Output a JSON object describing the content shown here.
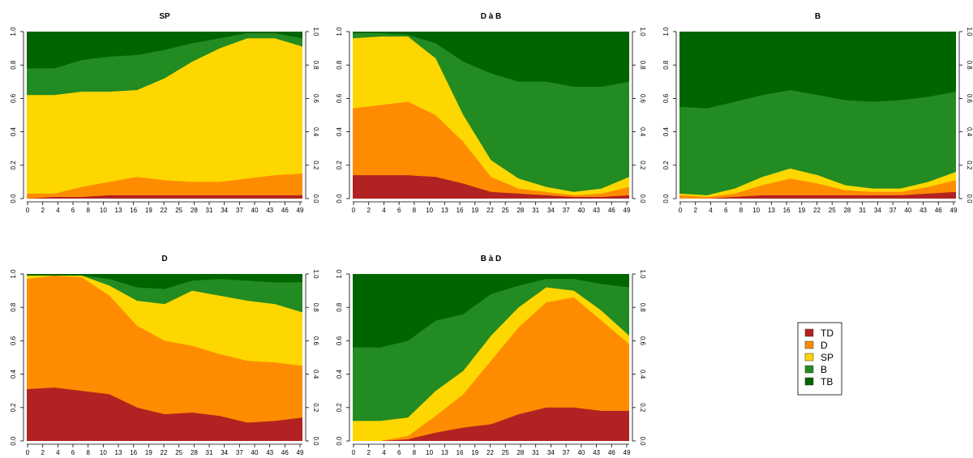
{
  "chart_data": {
    "type": "area",
    "stacked": true,
    "legend": {
      "placement": "right",
      "entries": [
        {
          "label": "TD",
          "color": "#B22222"
        },
        {
          "label": "D",
          "color": "#FF8C00"
        },
        {
          "label": "SP",
          "color": "#FFD700"
        },
        {
          "label": "B",
          "color": "#228B22"
        },
        {
          "label": "TB",
          "color": "#006400"
        }
      ]
    },
    "x": [
      0,
      5,
      10,
      15,
      20,
      25,
      30,
      35,
      40,
      45,
      50
    ],
    "x_tick_labels": [
      "0",
      "2",
      "4",
      "6",
      "8",
      "10",
      "13",
      "16",
      "19",
      "22",
      "25",
      "28",
      "31",
      "34",
      "37",
      "40",
      "43",
      "46",
      "49"
    ],
    "ylim": [
      0,
      1
    ],
    "y_tick_labels": [
      "0.0",
      "0.2",
      "0.4",
      "0.6",
      "0.8",
      "1.0"
    ],
    "panels": [
      {
        "title": "SP",
        "cumulative": {
          "TD": [
            0.0,
            0.01,
            0.01,
            0.02,
            0.02,
            0.02,
            0.02,
            0.02,
            0.02,
            0.02,
            0.02
          ],
          "D": [
            0.03,
            0.03,
            0.07,
            0.1,
            0.13,
            0.11,
            0.1,
            0.1,
            0.12,
            0.14,
            0.15
          ],
          "SP": [
            0.62,
            0.62,
            0.64,
            0.64,
            0.65,
            0.72,
            0.82,
            0.9,
            0.96,
            0.96,
            0.91
          ],
          "B": [
            0.78,
            0.78,
            0.83,
            0.85,
            0.86,
            0.89,
            0.93,
            0.96,
            0.99,
            0.99,
            0.96
          ]
        }
      },
      {
        "title": "D à B",
        "cumulative": {
          "TD": [
            0.14,
            0.14,
            0.14,
            0.13,
            0.09,
            0.04,
            0.03,
            0.02,
            0.01,
            0.01,
            0.02
          ],
          "D": [
            0.54,
            0.56,
            0.58,
            0.5,
            0.34,
            0.13,
            0.06,
            0.04,
            0.02,
            0.03,
            0.07
          ],
          "SP": [
            0.96,
            0.97,
            0.97,
            0.84,
            0.5,
            0.23,
            0.12,
            0.07,
            0.04,
            0.06,
            0.13
          ],
          "B": [
            0.99,
            0.99,
            0.98,
            0.93,
            0.82,
            0.75,
            0.7,
            0.7,
            0.67,
            0.67,
            0.7
          ]
        }
      },
      {
        "title": "B",
        "cumulative": {
          "TD": [
            0.0,
            0.0,
            0.01,
            0.02,
            0.02,
            0.02,
            0.02,
            0.02,
            0.02,
            0.03,
            0.04
          ],
          "D": [
            0.02,
            0.01,
            0.03,
            0.08,
            0.12,
            0.09,
            0.05,
            0.04,
            0.04,
            0.07,
            0.11
          ],
          "SP": [
            0.03,
            0.02,
            0.06,
            0.13,
            0.18,
            0.14,
            0.08,
            0.06,
            0.06,
            0.1,
            0.16
          ],
          "B": [
            0.55,
            0.54,
            0.58,
            0.62,
            0.65,
            0.62,
            0.59,
            0.58,
            0.59,
            0.61,
            0.64
          ]
        }
      },
      {
        "title": "D",
        "cumulative": {
          "TD": [
            0.31,
            0.32,
            0.3,
            0.28,
            0.2,
            0.16,
            0.17,
            0.15,
            0.11,
            0.12,
            0.14
          ],
          "D": [
            0.97,
            0.99,
            0.98,
            0.87,
            0.69,
            0.6,
            0.57,
            0.52,
            0.48,
            0.47,
            0.45
          ],
          "SP": [
            0.99,
            0.99,
            0.99,
            0.93,
            0.84,
            0.82,
            0.9,
            0.87,
            0.84,
            0.82,
            0.77
          ],
          "B": [
            0.99,
            0.99,
            0.99,
            0.97,
            0.92,
            0.91,
            0.96,
            0.97,
            0.96,
            0.95,
            0.95
          ]
        }
      },
      {
        "title": "B à D",
        "cumulative": {
          "TD": [
            0.0,
            0.0,
            0.01,
            0.05,
            0.08,
            0.1,
            0.16,
            0.2,
            0.2,
            0.18,
            0.18
          ],
          "D": [
            0.0,
            0.0,
            0.03,
            0.15,
            0.28,
            0.48,
            0.68,
            0.83,
            0.86,
            0.72,
            0.58
          ],
          "SP": [
            0.12,
            0.12,
            0.14,
            0.3,
            0.42,
            0.63,
            0.8,
            0.92,
            0.9,
            0.78,
            0.63
          ],
          "B": [
            0.56,
            0.56,
            0.6,
            0.72,
            0.76,
            0.88,
            0.93,
            0.97,
            0.97,
            0.94,
            0.92
          ]
        }
      }
    ]
  }
}
